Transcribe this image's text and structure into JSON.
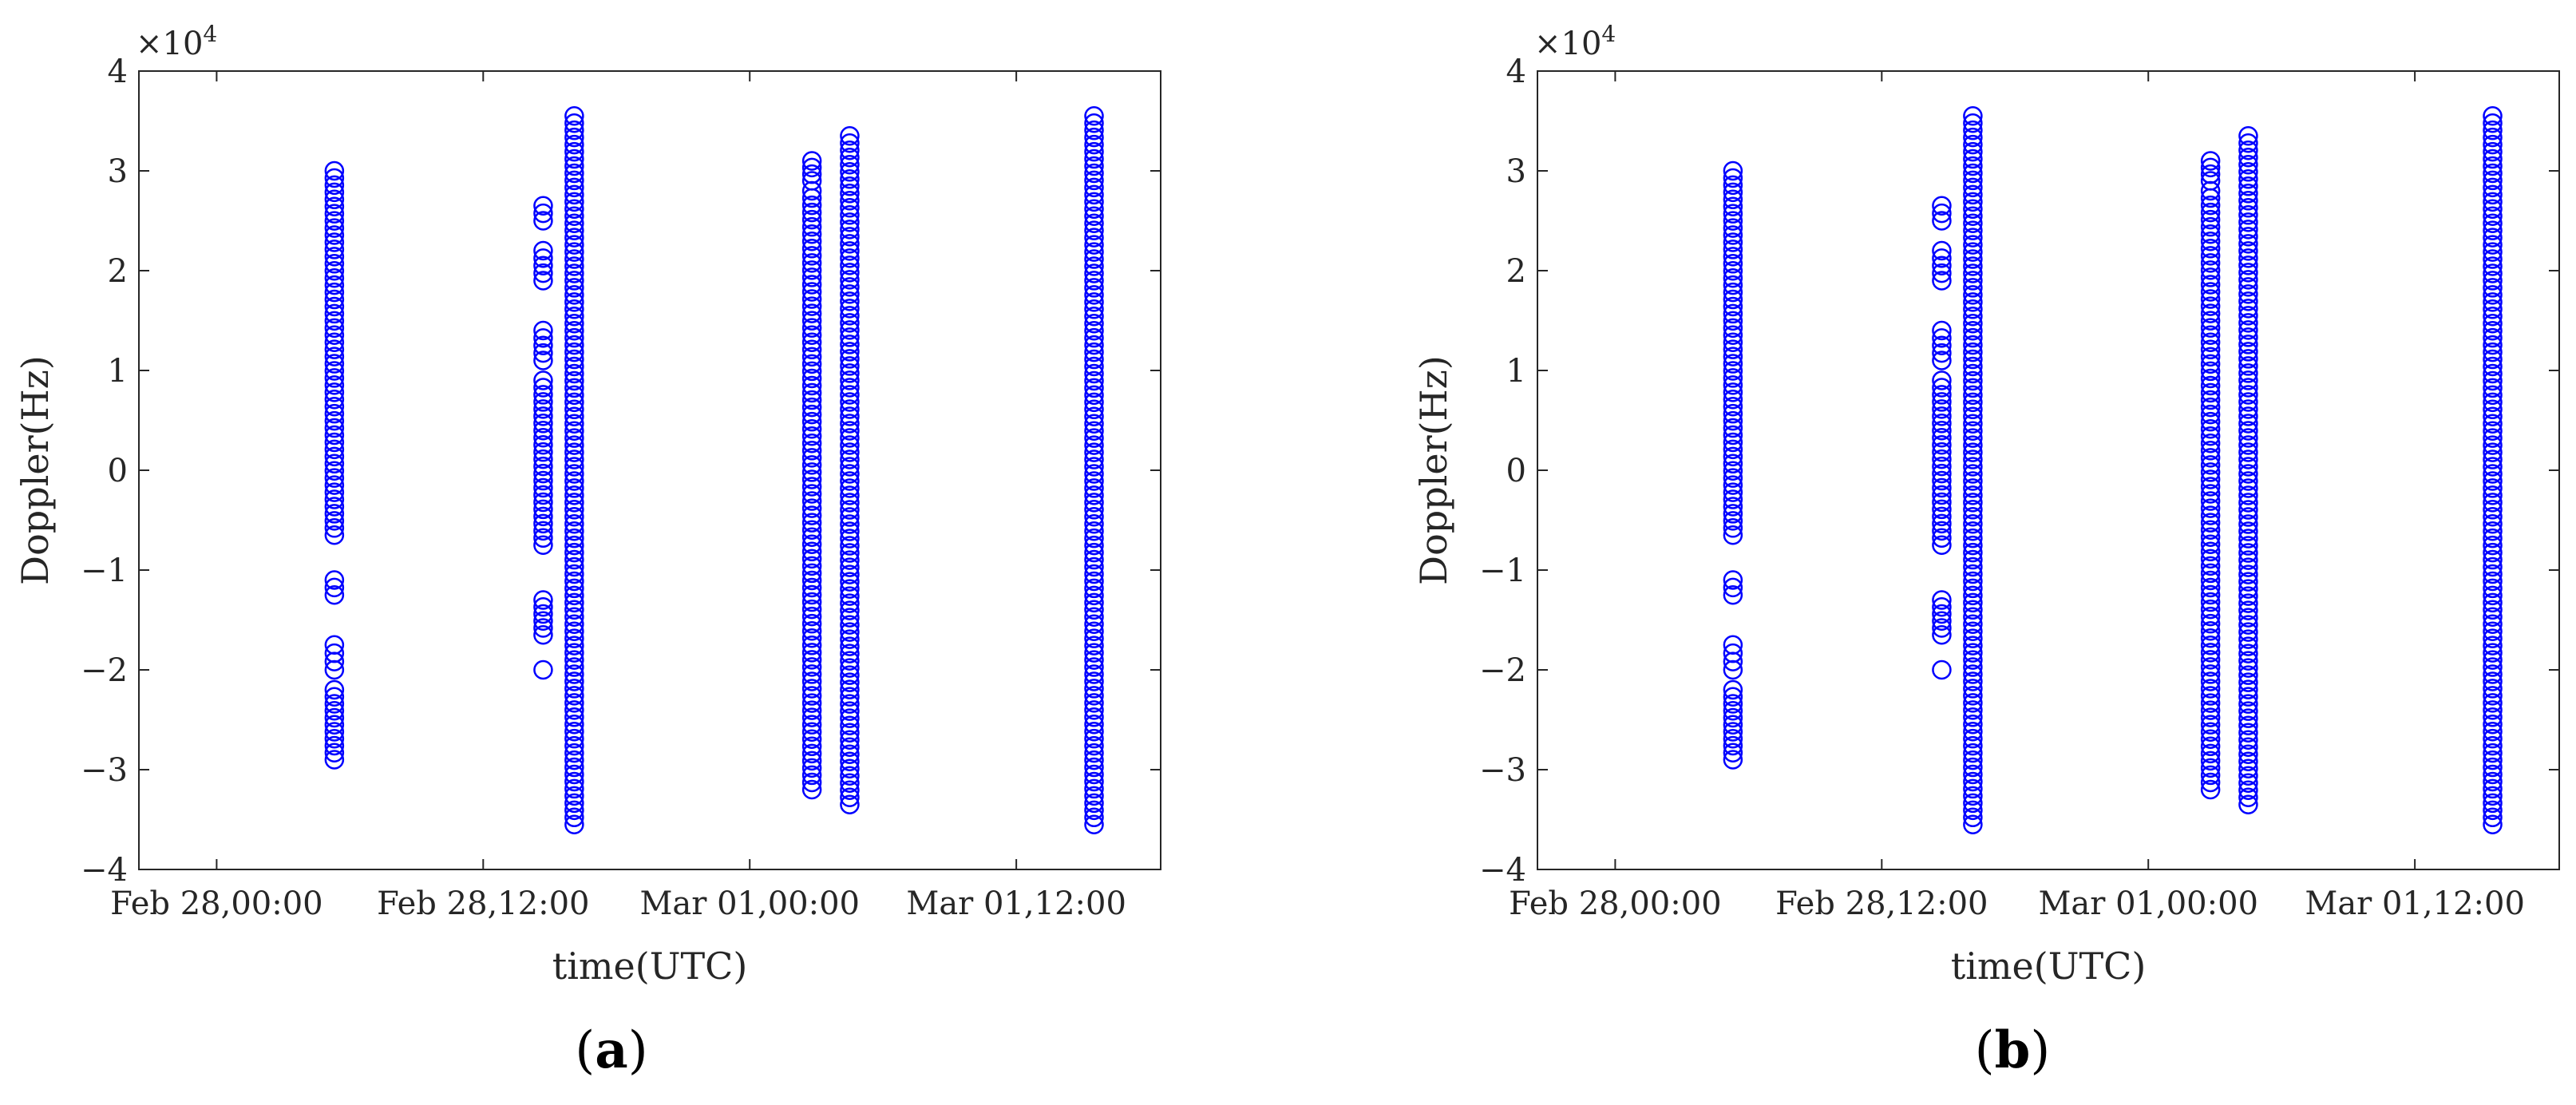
{
  "chart_data": [
    {
      "type": "scatter",
      "panel_label": "a",
      "xlabel": "time(UTC)",
      "ylabel": "Doppler(Hz)",
      "y_multiplier": "×10",
      "y_multiplier_exponent": "4",
      "x_unit": "hours since Feb 28,00:00",
      "xlim": [
        -3.5,
        42.5
      ],
      "ylim": [
        -40000,
        40000
      ],
      "x_ticks": [
        0,
        12,
        24,
        36
      ],
      "x_tick_labels": [
        "Feb 28,00:00",
        "Feb 28,12:00",
        "Mar 01,00:00",
        "Mar 01,12:00"
      ],
      "y_ticks": [
        -40000,
        -30000,
        -20000,
        -10000,
        0,
        10000,
        20000,
        30000,
        40000
      ],
      "y_tick_labels": [
        "−4",
        "−3",
        "−2",
        "−1",
        "0",
        "1",
        "2",
        "3",
        "4"
      ],
      "grid": false,
      "marker": "open-circle",
      "color": "#0000ff",
      "series": [
        {
          "x": 5.3,
          "y_segments": [
            [
              -6500,
              30000
            ],
            [
              -12500,
              -11000
            ],
            [
              -20000,
              -17500
            ],
            [
              -29000,
              -22000
            ]
          ]
        },
        {
          "x": 14.7,
          "y_segments": [
            [
              -20000,
              -20000
            ],
            [
              -16500,
              -13000
            ],
            [
              -7500,
              9000
            ],
            [
              11000,
              14000
            ],
            [
              19000,
              22000
            ],
            [
              25000,
              26500
            ]
          ]
        },
        {
          "x": 16.1,
          "y_segments": [
            [
              -35500,
              35500
            ]
          ]
        },
        {
          "x": 26.8,
          "y_segments": [
            [
              -32000,
              28000
            ],
            [
              29000,
              31000
            ]
          ]
        },
        {
          "x": 28.5,
          "y_segments": [
            [
              -33500,
              33500
            ]
          ]
        },
        {
          "x": 39.5,
          "y_segments": [
            [
              -35500,
              35500
            ]
          ]
        }
      ]
    },
    {
      "type": "scatter",
      "panel_label": "b",
      "xlabel": "time(UTC)",
      "ylabel": "Doppler(Hz)",
      "y_multiplier": "×10",
      "y_multiplier_exponent": "4",
      "x_unit": "hours since Feb 28,00:00",
      "xlim": [
        -3.5,
        42.5
      ],
      "ylim": [
        -40000,
        40000
      ],
      "x_ticks": [
        0,
        12,
        24,
        36
      ],
      "x_tick_labels": [
        "Feb 28,00:00",
        "Feb 28,12:00",
        "Mar 01,00:00",
        "Mar 01,12:00"
      ],
      "y_ticks": [
        -40000,
        -30000,
        -20000,
        -10000,
        0,
        10000,
        20000,
        30000,
        40000
      ],
      "y_tick_labels": [
        "−4",
        "−3",
        "−2",
        "−1",
        "0",
        "1",
        "2",
        "3",
        "4"
      ],
      "grid": false,
      "marker": "open-circle",
      "color": "#0000ff",
      "series": [
        {
          "x": 5.3,
          "y_segments": [
            [
              -6500,
              30000
            ],
            [
              -12500,
              -11000
            ],
            [
              -20000,
              -17500
            ],
            [
              -29000,
              -22000
            ]
          ]
        },
        {
          "x": 14.7,
          "y_segments": [
            [
              -20000,
              -20000
            ],
            [
              -16500,
              -13000
            ],
            [
              -7500,
              9000
            ],
            [
              11000,
              14000
            ],
            [
              19000,
              22000
            ],
            [
              25000,
              26500
            ]
          ]
        },
        {
          "x": 16.1,
          "y_segments": [
            [
              -35500,
              35500
            ]
          ]
        },
        {
          "x": 26.8,
          "y_segments": [
            [
              -32000,
              28000
            ],
            [
              29000,
              31000
            ]
          ]
        },
        {
          "x": 28.5,
          "y_segments": [
            [
              -33500,
              33500
            ]
          ]
        },
        {
          "x": 39.5,
          "y_segments": [
            [
              -35500,
              35500
            ]
          ]
        }
      ]
    }
  ]
}
